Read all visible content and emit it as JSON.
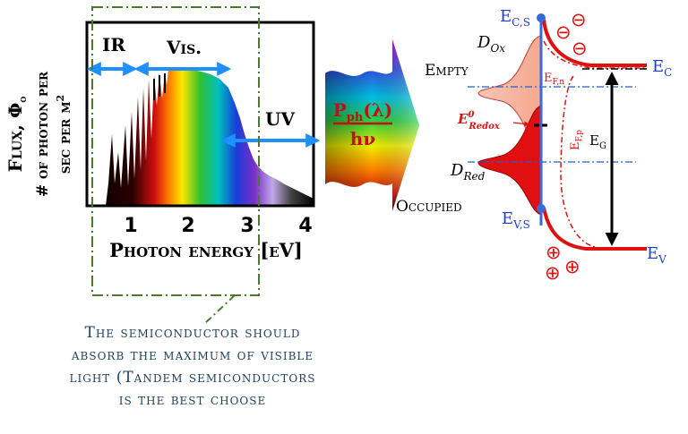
{
  "spectrum_panel": {
    "ylabel_main": "Flux, Φ",
    "ylabel_sub": "o",
    "ylabel_line2": "# of photon per",
    "ylabel_line3": "sec per m",
    "ylabel_line3_sup": "2",
    "region_ir": "IR",
    "region_vis": "Vis.",
    "region_uv": "UV",
    "x_ticks": [
      "1",
      "2",
      "3",
      "4"
    ],
    "xlabel": "Photon energy [eV]"
  },
  "arrow_panel": {
    "numerator_main": "P",
    "numerator_sub": "ph",
    "numerator_arg": "(λ)",
    "denominator": "hν"
  },
  "band_panel": {
    "ecs_main": "E",
    "ecs_sub": "C,S",
    "evs_main": "E",
    "evs_sub": "V,S",
    "ec_main": "E",
    "ec_sub": "C",
    "ev_main": "E",
    "ev_sub": "V",
    "eg_main": "E",
    "eg_sub": "G",
    "dox_main": "D",
    "dox_sub": "Ox",
    "dred_main": "D",
    "dred_sub": "Red",
    "empty_label": "Empty",
    "occupied_label": "Occupied",
    "efn_main": "E",
    "efn_sub": "F,n",
    "efp_main": "E",
    "efp_sub": "F,p",
    "redox_main": "E",
    "redox_sup": "0",
    "redox_sub": "Redox",
    "electron_glyph": "⊖",
    "hole_glyph": "⊕"
  },
  "caption_lines": [
    "The semiconductor should",
    "absorb the maximum of visible",
    "light (Tandem semiconductors",
    "is the best choose"
  ],
  "colors": {
    "blue": "#1e90ff",
    "red": "#e01010",
    "dash_green": "#4a7a2a",
    "caption": "#1f3f5f"
  }
}
